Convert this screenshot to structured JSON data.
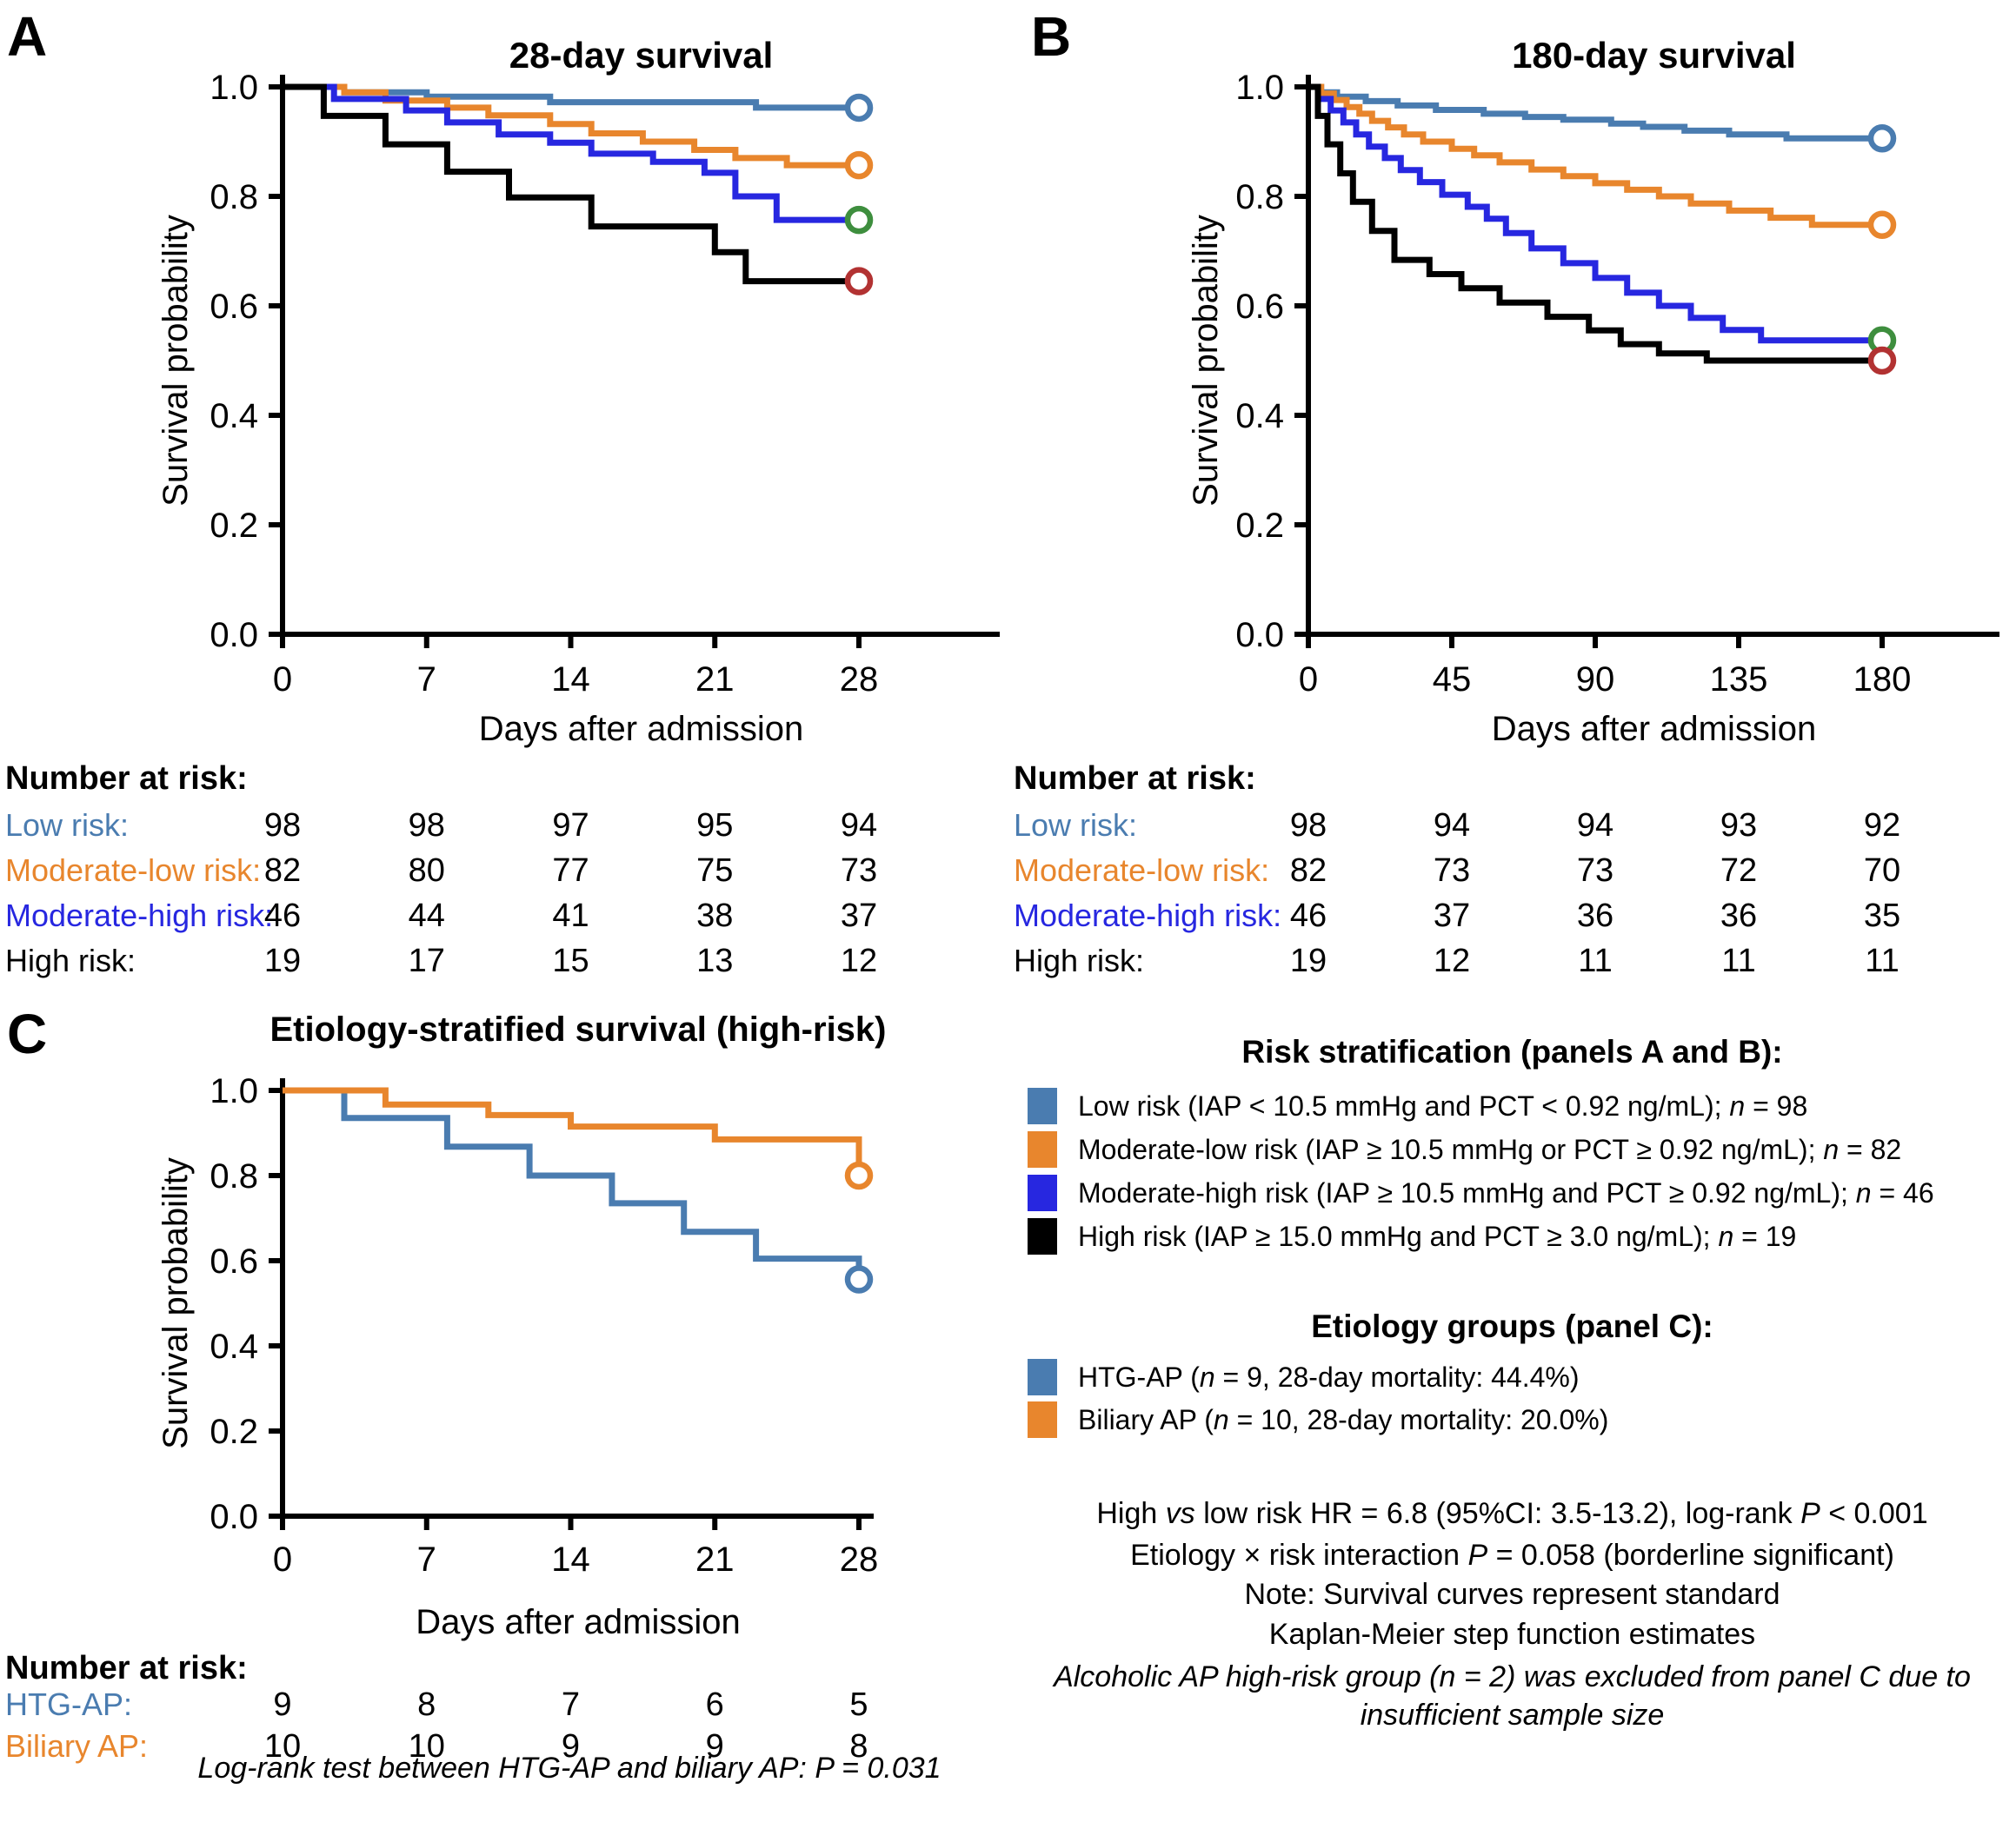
{
  "figure": {
    "panel_labels": [
      "A",
      "B",
      "C"
    ],
    "background": "#FFFFFF"
  },
  "colors": {
    "low_risk": "#4A7CB0",
    "moderate_low": "#E8862D",
    "moderate_high": "#2727E0",
    "high_risk": "#000000",
    "censor_green": "#3E8E3E",
    "censor_red": "#B23232"
  },
  "chart_data": [
    {
      "id": "panel-a",
      "panel": "A",
      "type": "line",
      "km_step": true,
      "title": "28-day survival",
      "xlabel": "Days after admission",
      "ylabel": "Survival probability",
      "xticks": [
        0,
        7,
        14,
        21,
        28
      ],
      "ytick_labels": [
        "0.0",
        "0.2",
        "0.4",
        "0.6",
        "0.8",
        "1.0"
      ],
      "xmax": 28,
      "ylim": [
        0,
        1
      ],
      "grid": false,
      "series": [
        {
          "name": "Low risk",
          "color_key": "low_risk",
          "marker_key": "low_risk",
          "steps": [
            [
              0,
              1.0
            ],
            [
              3,
              0.99
            ],
            [
              7,
              0.982
            ],
            [
              13,
              0.972
            ],
            [
              23,
              0.962
            ]
          ]
        },
        {
          "name": "Moderate-low risk",
          "color_key": "moderate_low",
          "marker_key": "moderate_low",
          "steps": [
            [
              0,
              1.0
            ],
            [
              3,
              0.99
            ],
            [
              5,
              0.975
            ],
            [
              8,
              0.962
            ],
            [
              10,
              0.948
            ],
            [
              13,
              0.932
            ],
            [
              15,
              0.915
            ],
            [
              17.5,
              0.9
            ],
            [
              20,
              0.885
            ],
            [
              22,
              0.87
            ],
            [
              24.5,
              0.857
            ]
          ]
        },
        {
          "name": "Moderate-high risk",
          "color_key": "moderate_high",
          "marker_key": "censor_green",
          "steps": [
            [
              0,
              1.0
            ],
            [
              2.5,
              0.978
            ],
            [
              6,
              0.957
            ],
            [
              8,
              0.935
            ],
            [
              10.5,
              0.913
            ],
            [
              13,
              0.898
            ],
            [
              15,
              0.878
            ],
            [
              18,
              0.863
            ],
            [
              20.5,
              0.843
            ],
            [
              22,
              0.8
            ],
            [
              24,
              0.757
            ]
          ]
        },
        {
          "name": "High risk",
          "color_key": "high_risk",
          "marker_key": "censor_red",
          "steps": [
            [
              0,
              1.0
            ],
            [
              2,
              0.947
            ],
            [
              5,
              0.895
            ],
            [
              8,
              0.845
            ],
            [
              11,
              0.798
            ],
            [
              15,
              0.745
            ],
            [
              21,
              0.698
            ],
            [
              22.5,
              0.645
            ]
          ]
        }
      ],
      "number_at_risk": {
        "heading": "Number at risk:",
        "rows": [
          {
            "label": "Low risk:",
            "color_key": "low_risk",
            "values": [
              "98",
              "98",
              "97",
              "95",
              "94"
            ]
          },
          {
            "label": "Moderate-low risk:",
            "color_key": "moderate_low",
            "values": [
              "82",
              "80",
              "77",
              "75",
              "73"
            ]
          },
          {
            "label": "Moderate-high risk:",
            "color_key": "moderate_high",
            "values": [
              "46",
              "44",
              "41",
              "38",
              "37"
            ]
          },
          {
            "label": "High risk:",
            "color_key": "high_risk",
            "values": [
              "19",
              "17",
              "15",
              "13",
              "12"
            ]
          }
        ]
      },
      "footnote": null
    },
    {
      "id": "panel-b",
      "panel": "B",
      "type": "line",
      "km_step": true,
      "title": "180-day survival",
      "xlabel": "Days after admission",
      "ylabel": "Survival probability",
      "xticks": [
        0,
        45,
        90,
        135,
        180
      ],
      "ytick_labels": [
        "0.0",
        "0.2",
        "0.4",
        "0.6",
        "0.8",
        "1.0"
      ],
      "xmax": 180,
      "ylim": [
        0,
        1
      ],
      "grid": false,
      "series": [
        {
          "name": "Low risk",
          "color_key": "low_risk",
          "marker_key": "low_risk",
          "steps": [
            [
              0,
              1.0
            ],
            [
              4,
              0.99
            ],
            [
              9,
              0.982
            ],
            [
              18,
              0.974
            ],
            [
              28,
              0.966
            ],
            [
              40,
              0.958
            ],
            [
              55,
              0.951
            ],
            [
              68,
              0.945
            ],
            [
              80,
              0.94
            ],
            [
              95,
              0.933
            ],
            [
              105,
              0.927
            ],
            [
              118,
              0.92
            ],
            [
              132,
              0.913
            ],
            [
              150,
              0.906
            ]
          ]
        },
        {
          "name": "Moderate-low risk",
          "color_key": "moderate_low",
          "marker_key": "moderate_low",
          "steps": [
            [
              0,
              1.0
            ],
            [
              4,
              0.988
            ],
            [
              8,
              0.976
            ],
            [
              12,
              0.963
            ],
            [
              16,
              0.951
            ],
            [
              20,
              0.938
            ],
            [
              25,
              0.926
            ],
            [
              30,
              0.913
            ],
            [
              36,
              0.9
            ],
            [
              45,
              0.887
            ],
            [
              52,
              0.875
            ],
            [
              60,
              0.862
            ],
            [
              70,
              0.849
            ],
            [
              80,
              0.837
            ],
            [
              90,
              0.824
            ],
            [
              100,
              0.812
            ],
            [
              110,
              0.8
            ],
            [
              120,
              0.787
            ],
            [
              132,
              0.774
            ],
            [
              145,
              0.761
            ],
            [
              158,
              0.748
            ]
          ]
        },
        {
          "name": "Moderate-high risk",
          "color_key": "moderate_high",
          "marker_key": "censor_green",
          "steps": [
            [
              0,
              1.0
            ],
            [
              3,
              0.978
            ],
            [
              7,
              0.957
            ],
            [
              11,
              0.935
            ],
            [
              15,
              0.913
            ],
            [
              19,
              0.891
            ],
            [
              24,
              0.87
            ],
            [
              29,
              0.848
            ],
            [
              35,
              0.826
            ],
            [
              42,
              0.803
            ],
            [
              50,
              0.781
            ],
            [
              56,
              0.759
            ],
            [
              62,
              0.733
            ],
            [
              70,
              0.705
            ],
            [
              80,
              0.678
            ],
            [
              90,
              0.651
            ],
            [
              100,
              0.624
            ],
            [
              110,
              0.6
            ],
            [
              120,
              0.578
            ],
            [
              130,
              0.556
            ],
            [
              142,
              0.537
            ]
          ]
        },
        {
          "name": "High risk",
          "color_key": "high_risk",
          "marker_key": "censor_red",
          "steps": [
            [
              0,
              1.0
            ],
            [
              3,
              0.947
            ],
            [
              6,
              0.895
            ],
            [
              10,
              0.842
            ],
            [
              14,
              0.79
            ],
            [
              20,
              0.737
            ],
            [
              27,
              0.684
            ],
            [
              38,
              0.658
            ],
            [
              48,
              0.632
            ],
            [
              60,
              0.606
            ],
            [
              75,
              0.58
            ],
            [
              88,
              0.555
            ],
            [
              98,
              0.53
            ],
            [
              110,
              0.513
            ],
            [
              125,
              0.5
            ]
          ]
        }
      ],
      "number_at_risk": {
        "heading": "Number at risk:",
        "rows": [
          {
            "label": "Low risk:",
            "color_key": "low_risk",
            "values": [
              "98",
              "94",
              "94",
              "93",
              "92"
            ]
          },
          {
            "label": "Moderate-low risk:",
            "color_key": "moderate_low",
            "values": [
              "82",
              "73",
              "73",
              "72",
              "70"
            ]
          },
          {
            "label": "Moderate-high risk:",
            "color_key": "moderate_high",
            "values": [
              "46",
              "37",
              "36",
              "36",
              "35"
            ]
          },
          {
            "label": "High risk:",
            "color_key": "high_risk",
            "values": [
              "19",
              "12",
              "11",
              "11",
              "11"
            ]
          }
        ]
      },
      "footnote": null
    },
    {
      "id": "panel-c",
      "panel": "C",
      "type": "line",
      "km_step": true,
      "title": "Etiology-stratified survival (high-risk)",
      "xlabel": "Days after admission",
      "ylabel": "Survival probability",
      "xticks": [
        0,
        7,
        14,
        21,
        28
      ],
      "ytick_labels": [
        "0.0",
        "0.2",
        "0.4",
        "0.6",
        "0.8",
        "1.0"
      ],
      "xmax": 28,
      "ylim": [
        0,
        1
      ],
      "grid": false,
      "series": [
        {
          "name": "HTG-AP",
          "color_key": "low_risk",
          "marker_key": "low_risk",
          "steps": [
            [
              0,
              1.0
            ],
            [
              3,
              0.935
            ],
            [
              8,
              0.868
            ],
            [
              12,
              0.8
            ],
            [
              16,
              0.735
            ],
            [
              19.5,
              0.668
            ],
            [
              23,
              0.605
            ],
            [
              28,
              0.556
            ]
          ]
        },
        {
          "name": "Biliary AP",
          "color_key": "moderate_low",
          "marker_key": "moderate_low",
          "steps": [
            [
              0,
              1.0
            ],
            [
              5,
              0.967
            ],
            [
              10,
              0.942
            ],
            [
              14,
              0.915
            ],
            [
              21,
              0.885
            ],
            [
              28,
              0.8
            ]
          ]
        }
      ],
      "number_at_risk": {
        "heading": "Number at risk:",
        "rows": [
          {
            "label": "HTG-AP:",
            "color_key": "low_risk",
            "values": [
              "9",
              "8",
              "7",
              "6",
              "5"
            ]
          },
          {
            "label": "Biliary AP:",
            "color_key": "moderate_low",
            "values": [
              "10",
              "10",
              "9",
              "9",
              "8"
            ]
          }
        ]
      },
      "footnote": "Log-rank test between HTG-AP and biliary AP: P = 0.031"
    }
  ],
  "legend": {
    "position": "bottom-right",
    "risk_heading": "Risk stratification (panels A and B):",
    "risk_items": [
      {
        "color_key": "low_risk",
        "text": "Low risk (IAP < 10.5 mmHg and PCT < 0.92 ng/mL); *n* = 98"
      },
      {
        "color_key": "moderate_low",
        "text": "Moderate-low risk (IAP ≥ 10.5 mmHg or PCT ≥ 0.92 ng/mL); *n* = 82"
      },
      {
        "color_key": "moderate_high",
        "text": "Moderate-high risk (IAP ≥ 10.5 mmHg and PCT ≥ 0.92 ng/mL); *n* = 46"
      },
      {
        "color_key": "high_risk",
        "text": "High risk (IAP ≥ 15.0 mmHg and PCT ≥ 3.0 ng/mL); *n* = 19"
      }
    ],
    "etiology_heading": "Etiology groups (panel C):",
    "etiology_items": [
      {
        "color_key": "low_risk",
        "text": "HTG-AP (*n* = 9, 28-day mortality: 44.4%)"
      },
      {
        "color_key": "moderate_low",
        "text": "Biliary AP (*n* = 10, 28-day mortality: 20.0%)"
      }
    ]
  },
  "stats_notes": [
    {
      "text": "High *vs* low risk HR = 6.8 (95%CI: 3.5-13.2), log-rank *P* < 0.001",
      "italic": false
    },
    {
      "text": "Etiology × risk interaction *P* = 0.058 (borderline significant)",
      "italic": false
    },
    {
      "text": "Note: Survival curves represent standard",
      "italic": false
    },
    {
      "text": "Kaplan-Meier step function estimates",
      "italic": false
    },
    {
      "text": "Alcoholic AP high-risk group (n = 2) was excluded from panel C due to",
      "italic": true
    },
    {
      "text": "insufficient sample size",
      "italic": true
    }
  ]
}
